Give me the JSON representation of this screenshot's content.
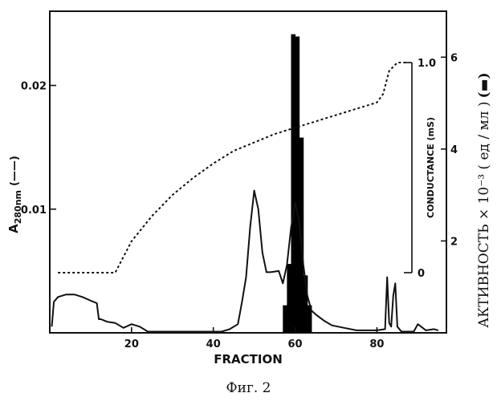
{
  "caption": "Фиг. 2",
  "chart_data": {
    "type": "line",
    "xlabel": "FRACTION",
    "xlim": [
      0,
      97
    ],
    "x_ticks": [
      20,
      40,
      60,
      80
    ],
    "x_tick_labels": [
      "20",
      "40",
      "60",
      "80"
    ],
    "left_axis": {
      "label_main": "A",
      "label_sub": "280nm",
      "label_key": "(——)",
      "ylim": [
        0,
        0.026
      ],
      "ticks": [
        0.01,
        0.02
      ],
      "tick_labels": [
        "0.01",
        "0.02"
      ]
    },
    "conductance_axis": {
      "label": "CONDUCTANCE (mS)",
      "ylim": [
        0,
        1.0
      ],
      "ticks": [
        0,
        1.0
      ],
      "tick_labels": [
        "0",
        "1.0"
      ]
    },
    "right_axis": {
      "label": "АКТИВНОСТЬ  × 10⁻³ ( ед / мл )",
      "label_key": "(▬)",
      "ylim": [
        0,
        7
      ],
      "ticks": [
        2,
        4,
        6
      ],
      "tick_labels": [
        "2",
        "4",
        "6"
      ]
    },
    "series": [
      {
        "style": "solid",
        "axis": "left",
        "x": [
          0.5,
          1,
          2,
          4,
          6,
          8,
          10,
          11.5,
          12,
          12.5,
          14,
          16,
          18,
          20,
          22,
          24,
          26,
          28,
          30,
          32,
          34,
          36,
          38,
          40,
          42,
          44,
          46,
          47,
          48,
          49,
          50,
          51,
          52,
          53,
          54,
          56,
          57,
          58,
          59,
          60,
          61,
          62,
          63,
          64,
          65,
          67,
          69,
          72,
          75,
          78,
          80,
          82,
          82.5,
          83,
          83.5,
          84,
          84.5,
          85,
          85.5,
          86,
          87,
          88,
          89,
          90,
          92,
          94,
          95
        ],
        "y": [
          0.0005,
          0.0025,
          0.0029,
          0.0031,
          0.0031,
          0.0029,
          0.0026,
          0.0024,
          0.0011,
          0.0011,
          0.0009,
          0.0008,
          0.0004,
          0.0007,
          0.0005,
          0.0001,
          0.0001,
          0.0001,
          0.0001,
          0.0001,
          0.0001,
          0.0001,
          0.0001,
          0.0001,
          0.0001,
          0.0003,
          0.0007,
          0.0025,
          0.0045,
          0.0085,
          0.0115,
          0.01,
          0.0065,
          0.0049,
          0.0049,
          0.005,
          0.004,
          0.0055,
          0.0085,
          0.0105,
          0.009,
          0.0055,
          0.003,
          0.0018,
          0.0015,
          0.001,
          0.0006,
          0.0004,
          0.0002,
          0.0002,
          0.0002,
          0.0003,
          0.0045,
          0.0008,
          0.0005,
          0.003,
          0.004,
          0.0005,
          0.0003,
          0.0001,
          0.0001,
          0.0001,
          0.0001,
          0.0007,
          0.0002,
          0.0003,
          0.0002
        ]
      },
      {
        "style": "dotted",
        "axis": "conductance",
        "x": [
          2,
          16,
          20,
          25,
          30,
          35,
          40,
          45,
          50,
          55,
          60,
          65,
          70,
          75,
          80,
          81.5,
          83,
          85,
          87
        ],
        "y": [
          0.0,
          0.0,
          0.15,
          0.27,
          0.37,
          0.45,
          0.52,
          0.58,
          0.62,
          0.66,
          0.69,
          0.72,
          0.75,
          0.78,
          0.81,
          0.85,
          0.96,
          1.0,
          1.0
        ]
      }
    ],
    "bars": {
      "axis": "right",
      "x_start": [
        57,
        58,
        59,
        60,
        61,
        62,
        63
      ],
      "x_end": [
        58,
        59,
        60,
        61,
        62,
        63,
        64
      ],
      "values": [
        0.6,
        1.5,
        6.5,
        6.45,
        4.25,
        1.25,
        0.6
      ]
    }
  }
}
